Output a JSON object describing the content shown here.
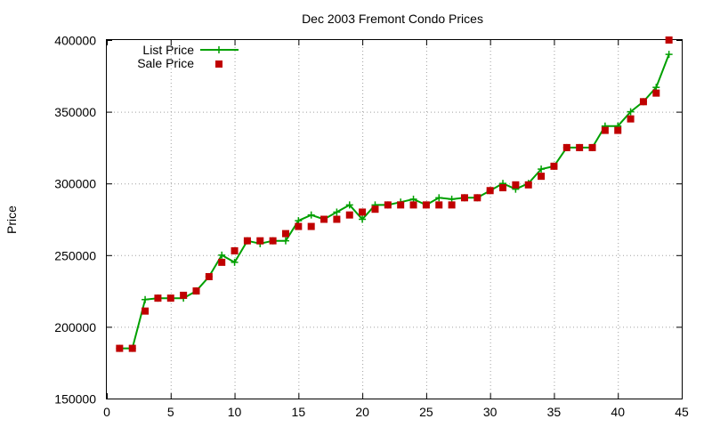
{
  "chart_data": {
    "type": "line",
    "title": "Dec 2003 Fremont Condo Prices",
    "xlabel": "",
    "ylabel": "Price",
    "xlim": [
      0,
      45
    ],
    "ylim": [
      150000,
      400000
    ],
    "x_ticks": [
      0,
      5,
      10,
      15,
      20,
      25,
      30,
      35,
      40,
      45
    ],
    "y_ticks": [
      150000,
      200000,
      250000,
      300000,
      350000,
      400000
    ],
    "grid": true,
    "legend_position": "top-left",
    "series": [
      {
        "name": "List Price",
        "style": "lines-points",
        "marker": "plus",
        "color": "#00a000",
        "x": [
          1,
          2,
          3,
          4,
          5,
          6,
          7,
          8,
          9,
          10,
          11,
          12,
          13,
          14,
          15,
          16,
          17,
          18,
          19,
          20,
          21,
          22,
          23,
          24,
          25,
          26,
          27,
          28,
          29,
          30,
          31,
          32,
          33,
          34,
          35,
          36,
          37,
          38,
          39,
          40,
          41,
          42,
          43,
          44
        ],
        "values": [
          185000,
          185000,
          219000,
          220000,
          220000,
          220000,
          225000,
          235000,
          250000,
          245000,
          260000,
          258000,
          260000,
          260000,
          274000,
          278000,
          275000,
          280000,
          285000,
          275000,
          285000,
          285000,
          287000,
          289000,
          285000,
          290000,
          289000,
          290000,
          290000,
          295000,
          300000,
          296000,
          300000,
          310000,
          312000,
          325000,
          325000,
          325000,
          340000,
          340000,
          350000,
          357000,
          367000,
          390000
        ]
      },
      {
        "name": "Sale Price",
        "style": "points",
        "marker": "square",
        "color": "#c00000",
        "x": [
          1,
          2,
          3,
          4,
          5,
          6,
          7,
          8,
          9,
          10,
          11,
          12,
          13,
          14,
          15,
          16,
          17,
          18,
          19,
          20,
          21,
          22,
          23,
          24,
          25,
          26,
          27,
          28,
          29,
          30,
          31,
          32,
          33,
          34,
          35,
          36,
          37,
          38,
          39,
          40,
          41,
          42,
          43,
          44
        ],
        "values": [
          185000,
          185000,
          211000,
          220000,
          220000,
          222000,
          225000,
          235000,
          245000,
          253000,
          260000,
          260000,
          260000,
          265000,
          270000,
          270000,
          275000,
          275000,
          278000,
          280000,
          282000,
          285000,
          285000,
          285000,
          285000,
          285000,
          285000,
          290000,
          290000,
          295000,
          297000,
          299000,
          299000,
          305000,
          312000,
          325000,
          325000,
          325000,
          337000,
          337000,
          345000,
          357000,
          363000,
          400000
        ]
      }
    ]
  }
}
